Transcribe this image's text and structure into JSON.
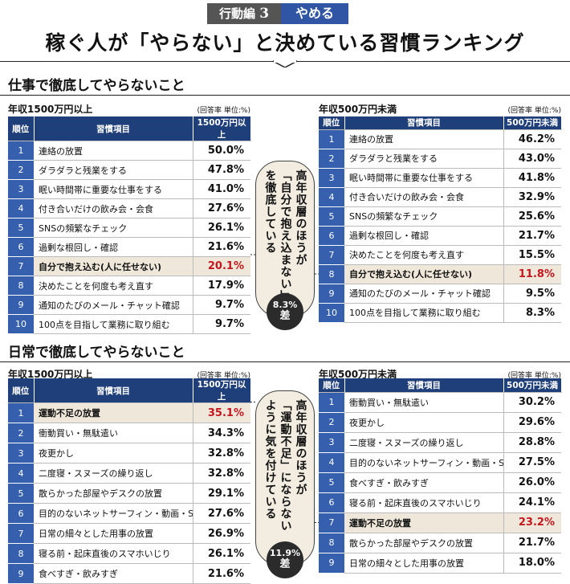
{
  "header": {
    "tag": "行動編",
    "tag_number": "3",
    "tab": "やめる",
    "title": "稼ぐ人が「やらない」と決めている習慣ランキング"
  },
  "sections": [
    {
      "heading": "仕事で徹底してやらないこと",
      "tables": [
        {
          "label": "年収1500万円以上",
          "note": "(回答率 単位:%)",
          "columns": [
            "順位",
            "習慣項目",
            "1500万円以上"
          ],
          "highlight_row": 6,
          "rows": [
            [
              1,
              "連絡の放置",
              "50.0%"
            ],
            [
              2,
              "ダラダラと残業をする",
              "47.8%"
            ],
            [
              3,
              "眠い時間帯に重要な仕事をする",
              "41.0%"
            ],
            [
              4,
              "付き合いだけの飲み会・会食",
              "27.6%"
            ],
            [
              5,
              "SNSの頻繁なチェック",
              "26.1%"
            ],
            [
              6,
              "過剰な根回し・確認",
              "21.6%"
            ],
            [
              7,
              "自分で抱え込む(人に任せない)",
              "20.1%"
            ],
            [
              8,
              "決めたことを何度も考え直す",
              "17.9%"
            ],
            [
              9,
              "通知のたびのメール・チャット確認",
              "9.7%"
            ],
            [
              10,
              "100点を目指して業務に取り組む",
              "9.7%"
            ]
          ]
        },
        {
          "label": "年収500万円未満",
          "note": "(回答率 単位:%)",
          "columns": [
            "順位",
            "習慣項目",
            "500万円未満"
          ],
          "highlight_row": 7,
          "rows": [
            [
              1,
              "連絡の放置",
              "46.2%"
            ],
            [
              2,
              "ダラダラと残業をする",
              "43.0%"
            ],
            [
              3,
              "眠い時間帯に重要な仕事をする",
              "41.8%"
            ],
            [
              4,
              "付き合いだけの飲み会・会食",
              "32.9%"
            ],
            [
              5,
              "SNSの頻繁なチェック",
              "25.6%"
            ],
            [
              6,
              "過剰な根回し・確認",
              "21.7%"
            ],
            [
              7,
              "決めたことを何度も考え直す",
              "15.5%"
            ],
            [
              8,
              "自分で抱え込む(人に任せない)",
              "11.8%"
            ],
            [
              9,
              "通知のたびのメール・チャット確認",
              "9.5%"
            ],
            [
              10,
              "100点を目指して業務に取り組む",
              "8.3%"
            ]
          ]
        }
      ],
      "callout": {
        "lines": [
          "高年収層のほうが",
          "「自分で抱え込まない」",
          "を徹底している"
        ],
        "badge": [
          "8.3%",
          "差"
        ]
      }
    },
    {
      "heading": "日常で徹底してやらないこと",
      "tables": [
        {
          "label": "年収1500万円以上",
          "note": "(回答率 単位:%)",
          "columns": [
            "順位",
            "習慣項目",
            "1500万円以上"
          ],
          "highlight_row": 0,
          "rows": [
            [
              1,
              "運動不足の放置",
              "35.1%"
            ],
            [
              2,
              "衝動買い・無駄遣い",
              "34.3%"
            ],
            [
              3,
              "夜更かし",
              "32.8%"
            ],
            [
              4,
              "二度寝・スヌーズの繰り返し",
              "32.8%"
            ],
            [
              5,
              "散らかった部屋やデスクの放置",
              "29.1%"
            ],
            [
              6,
              "目的のないネットサーフィン・動画・SNS",
              "27.6%"
            ],
            [
              7,
              "日常の細々とした用事の放置",
              "26.9%"
            ],
            [
              8,
              "寝る前・起床直後のスマホいじり",
              "26.1%"
            ],
            [
              9,
              "食べすぎ・飲みすぎ",
              "21.6%"
            ]
          ]
        },
        {
          "label": "年収500万円未満",
          "note": "(回答率 単位:%)",
          "columns": [
            "順位",
            "習慣項目",
            "500万円未満"
          ],
          "highlight_row": 6,
          "rows": [
            [
              1,
              "衝動買い・無駄遣い",
              "30.2%"
            ],
            [
              2,
              "夜更かし",
              "29.6%"
            ],
            [
              3,
              "二度寝・スヌーズの繰り返し",
              "28.8%"
            ],
            [
              4,
              "目的のないネットサーフィン・動画・SNS",
              "27.5%"
            ],
            [
              5,
              "食べすぎ・飲みすぎ",
              "26.0%"
            ],
            [
              6,
              "寝る前・起床直後のスマホいじり",
              "24.1%"
            ],
            [
              7,
              "運動不足の放置",
              "23.2%"
            ],
            [
              8,
              "散らかった部屋やデスクの放置",
              "21.7%"
            ],
            [
              9,
              "日常の細々とした用事の放置",
              "18.0%"
            ]
          ]
        }
      ],
      "callout": {
        "lines": [
          "高年収層のほうが",
          "「運動不足」にならない",
          "ように気を付けている"
        ],
        "badge": [
          "11.9%",
          "差"
        ]
      }
    }
  ]
}
